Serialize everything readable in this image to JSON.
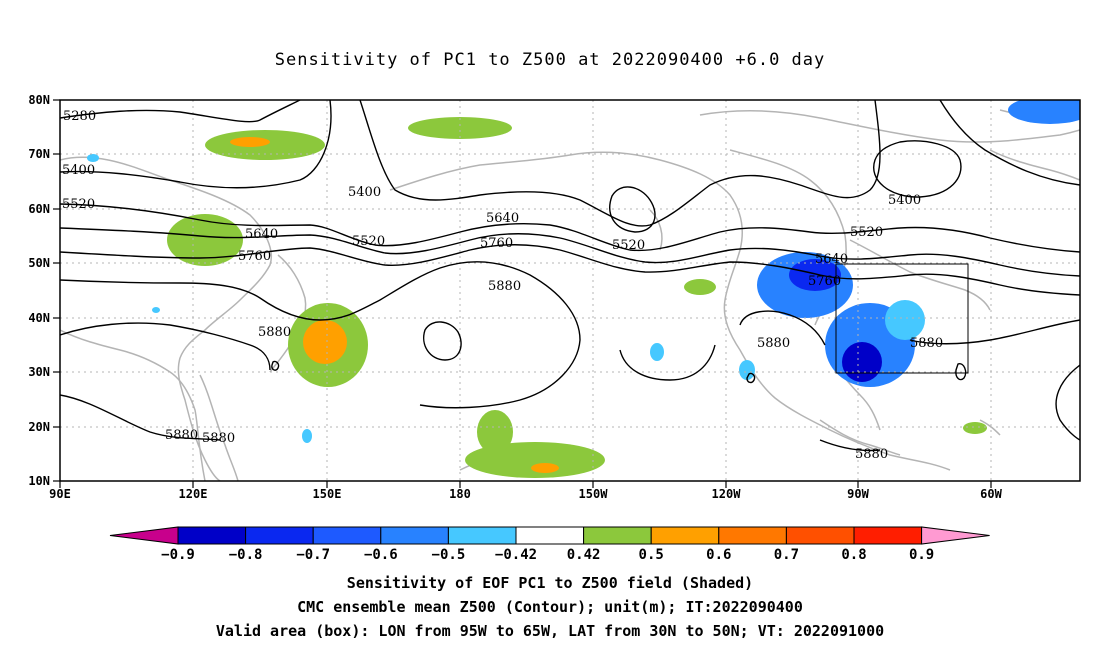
{
  "title": "Sensitivity of PC1 to Z500 at 2022090400 +6.0 day",
  "map": {
    "lon_labels": [
      "90E",
      "120E",
      "150E",
      "180",
      "150W",
      "120W",
      "90W",
      "60W"
    ],
    "lat_labels": [
      "80N",
      "70N",
      "60N",
      "50N",
      "40N",
      "30N",
      "20N",
      "10N"
    ],
    "contour_labels": [
      "5280",
      "5400",
      "5400",
      "5400",
      "5520",
      "5520",
      "5520",
      "5520",
      "5640",
      "5640",
      "5640",
      "5760",
      "5760",
      "5760",
      "5880",
      "5880",
      "5880",
      "5880",
      "5880",
      "5880",
      "5880"
    ],
    "valid_box": {
      "lon_from": "95W",
      "lon_to": "65W",
      "lat_from": "30N",
      "lat_to": "50N"
    }
  },
  "colorbar": {
    "colors": [
      "#c8008c",
      "#0000c8",
      "#0a28f0",
      "#1e5aff",
      "#2882ff",
      "#46c8ff",
      "#ffffff",
      "#8cc83c",
      "#ffa000",
      "#ff7800",
      "#ff5000",
      "#ff1e00",
      "#ff9ad2"
    ],
    "labels": [
      "−0.9",
      "−0.8",
      "−0.7",
      "−0.6",
      "−0.5",
      "−0.42",
      "0.42",
      "0.5",
      "0.6",
      "0.7",
      "0.8",
      "0.9"
    ]
  },
  "captions": [
    "Sensitivity of EOF PC1 to Z500 field (Shaded)",
    "CMC ensemble mean Z500 (Contour); unit(m); IT:2022090400",
    "Valid area (box): LON from 95W to 65W, LAT from 30N to 50N; VT: 2022091000"
  ]
}
